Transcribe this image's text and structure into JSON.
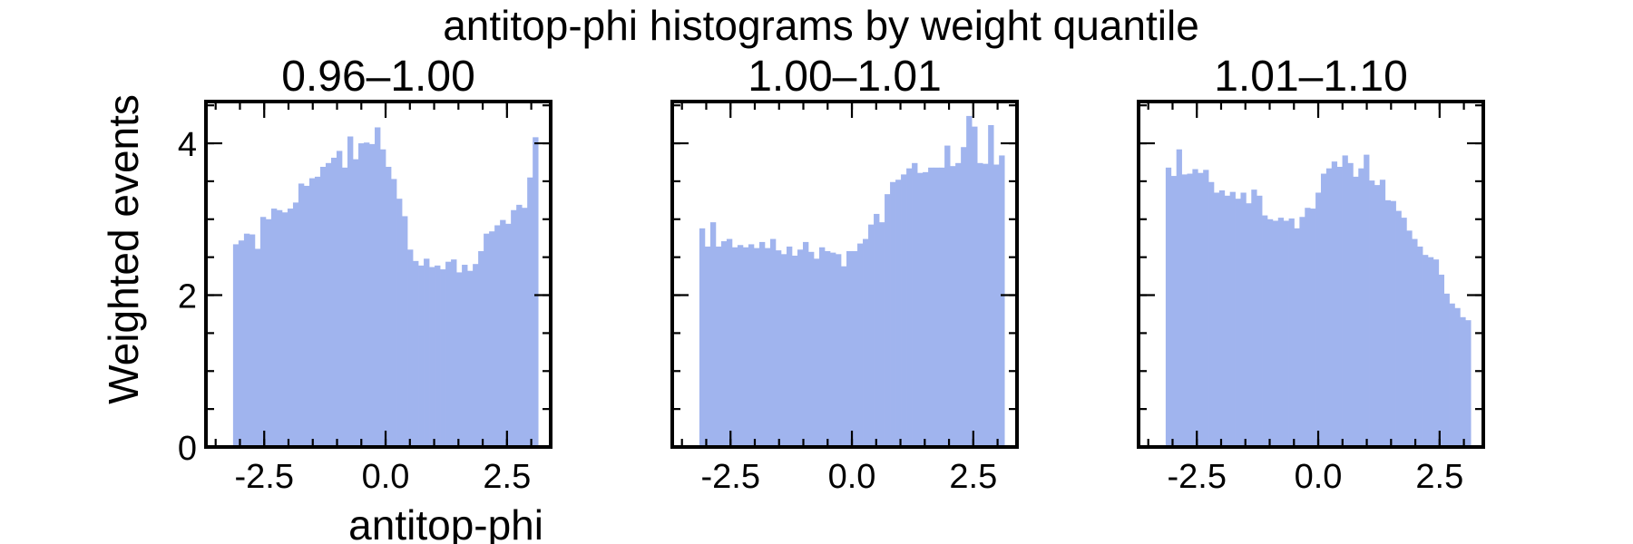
{
  "figure": {
    "suptitle": "antitop-phi histograms by weight quantile",
    "xlabel": "antitop-phi",
    "ylabel": "Weighted events",
    "bar_color": "#a0b4ee"
  },
  "chart_data": [
    {
      "type": "bar",
      "title": "0.96–1.00",
      "xlabel": "antitop-phi",
      "ylabel": "Weighted events",
      "bin_range": [
        -3.1416,
        3.1416
      ],
      "xlim": [
        -3.7,
        3.4
      ],
      "ylim": [
        0,
        4.55
      ],
      "xticks": [
        -2.5,
        0.0,
        2.5
      ],
      "xtick_labels": [
        "-2.5",
        "0.0",
        "2.5"
      ],
      "yticks": [
        0,
        2,
        4
      ],
      "ytick_labels": [
        "0",
        "2",
        "4"
      ],
      "values": [
        2.67,
        2.72,
        2.81,
        2.8,
        2.61,
        3.03,
        3.0,
        3.14,
        3.12,
        3.09,
        3.14,
        3.22,
        3.47,
        3.44,
        3.54,
        3.56,
        3.69,
        3.74,
        3.81,
        3.9,
        3.68,
        4.09,
        3.79,
        4.0,
        4.01,
        3.99,
        4.21,
        3.92,
        3.69,
        3.53,
        3.27,
        3.04,
        2.6,
        2.45,
        2.39,
        2.48,
        2.37,
        2.39,
        2.34,
        2.44,
        2.47,
        2.3,
        2.4,
        2.32,
        2.41,
        2.58,
        2.81,
        2.84,
        2.92,
        2.99,
        2.94,
        3.12,
        3.19,
        3.15,
        3.55,
        4.08
      ]
    },
    {
      "type": "bar",
      "title": "1.00–1.01",
      "xlabel": "antitop-phi",
      "ylabel": "",
      "bin_range": [
        -3.1416,
        3.1416
      ],
      "xlim": [
        -3.7,
        3.4
      ],
      "ylim": [
        0,
        4.55
      ],
      "xticks": [
        -2.5,
        0.0,
        2.5
      ],
      "xtick_labels": [
        "-2.5",
        "0.0",
        "2.5"
      ],
      "yticks": [
        0,
        2,
        4
      ],
      "ytick_labels": [],
      "values": [
        2.88,
        2.64,
        2.96,
        2.64,
        2.71,
        2.74,
        2.63,
        2.66,
        2.63,
        2.67,
        2.62,
        2.7,
        2.62,
        2.74,
        2.59,
        2.54,
        2.64,
        2.52,
        2.6,
        2.7,
        2.57,
        2.48,
        2.63,
        2.58,
        2.56,
        2.54,
        2.38,
        2.58,
        2.58,
        2.68,
        2.74,
        2.93,
        3.07,
        2.96,
        3.33,
        3.49,
        3.52,
        3.59,
        3.67,
        3.74,
        3.61,
        3.62,
        3.68,
        3.68,
        3.68,
        3.97,
        3.7,
        3.74,
        3.95,
        4.36,
        4.22,
        3.74,
        3.73,
        4.24,
        3.72,
        3.84
      ]
    },
    {
      "type": "bar",
      "title": "1.01–1.10",
      "xlabel": "antitop-phi",
      "ylabel": "",
      "bin_range": [
        -3.1416,
        3.1416
      ],
      "xlim": [
        -3.7,
        3.4
      ],
      "ylim": [
        0,
        4.55
      ],
      "xticks": [
        -2.5,
        0.0,
        2.5
      ],
      "xtick_labels": [
        "-2.5",
        "0.0",
        "2.5"
      ],
      "yticks": [
        0,
        2,
        4
      ],
      "ytick_labels": [],
      "values": [
        3.68,
        3.57,
        3.92,
        3.59,
        3.6,
        3.66,
        3.61,
        3.65,
        3.49,
        3.35,
        3.38,
        3.31,
        3.36,
        3.27,
        3.35,
        3.21,
        3.39,
        3.31,
        3.05,
        3.0,
        2.98,
        3.02,
        2.98,
        3.01,
        2.88,
        3.03,
        3.15,
        3.14,
        3.35,
        3.6,
        3.67,
        3.76,
        3.69,
        3.84,
        3.74,
        3.56,
        3.67,
        3.85,
        3.51,
        3.45,
        3.52,
        3.25,
        3.24,
        3.11,
        3.02,
        2.85,
        2.74,
        2.64,
        2.53,
        2.5,
        2.47,
        2.27,
        2.02,
        1.89,
        1.83,
        1.71,
        1.67
      ]
    }
  ]
}
